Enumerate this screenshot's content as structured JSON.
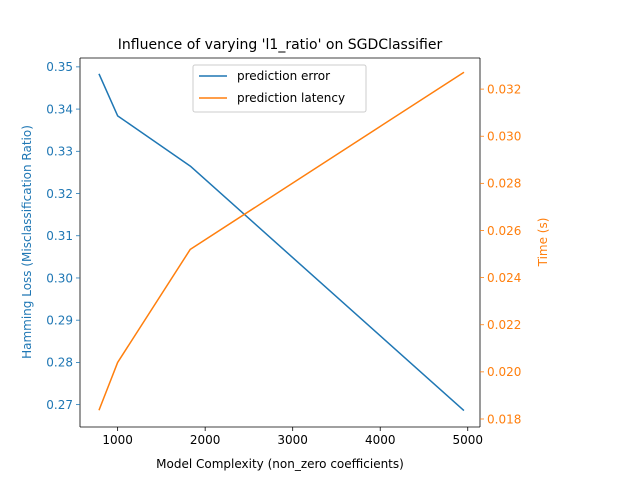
{
  "chart_data": {
    "type": "line",
    "title": "Influence of varying 'l1_ratio' on SGDClassifier",
    "xlabel": "Model Complexity (non_zero coefficients)",
    "ylabel_left": "Hamming Loss (Misclassification Ratio)",
    "ylabel_right": "Time (s)",
    "xlim": [
      570,
      5140
    ],
    "ylim_left": [
      0.2647,
      0.3521
    ],
    "ylim_right": [
      0.01766,
      0.03332
    ],
    "x_ticks": [
      1000,
      2000,
      3000,
      4000,
      5000
    ],
    "x_tick_labels": [
      "1000",
      "2000",
      "3000",
      "4000",
      "5000"
    ],
    "y_left_ticks": [
      0.27,
      0.28,
      0.29,
      0.3,
      0.31,
      0.32,
      0.33,
      0.34,
      0.35
    ],
    "y_left_tick_labels": [
      "0.27",
      "0.28",
      "0.29",
      "0.30",
      "0.31",
      "0.32",
      "0.33",
      "0.34",
      "0.35"
    ],
    "y_right_ticks": [
      0.018,
      0.02,
      0.022,
      0.024,
      0.026,
      0.028,
      0.03,
      0.032
    ],
    "y_right_tick_labels": [
      "0.018",
      "0.020",
      "0.022",
      "0.024",
      "0.026",
      "0.028",
      "0.030",
      "0.032"
    ],
    "grid": false,
    "legend_position": "top-center",
    "colors": {
      "left": "#1f77b4",
      "right": "#ff7f0e"
    },
    "series": [
      {
        "name": "prediction error",
        "axis": "left",
        "color": "#1f77b4",
        "x": [
          790,
          1000,
          1830,
          4950
        ],
        "y": [
          0.3482,
          0.3384,
          0.3265,
          0.2687
        ]
      },
      {
        "name": "prediction latency",
        "axis": "right",
        "color": "#ff7f0e",
        "x": [
          790,
          1000,
          1830,
          4950
        ],
        "y": [
          0.0184,
          0.0204,
          0.0252,
          0.0327
        ]
      }
    ]
  }
}
